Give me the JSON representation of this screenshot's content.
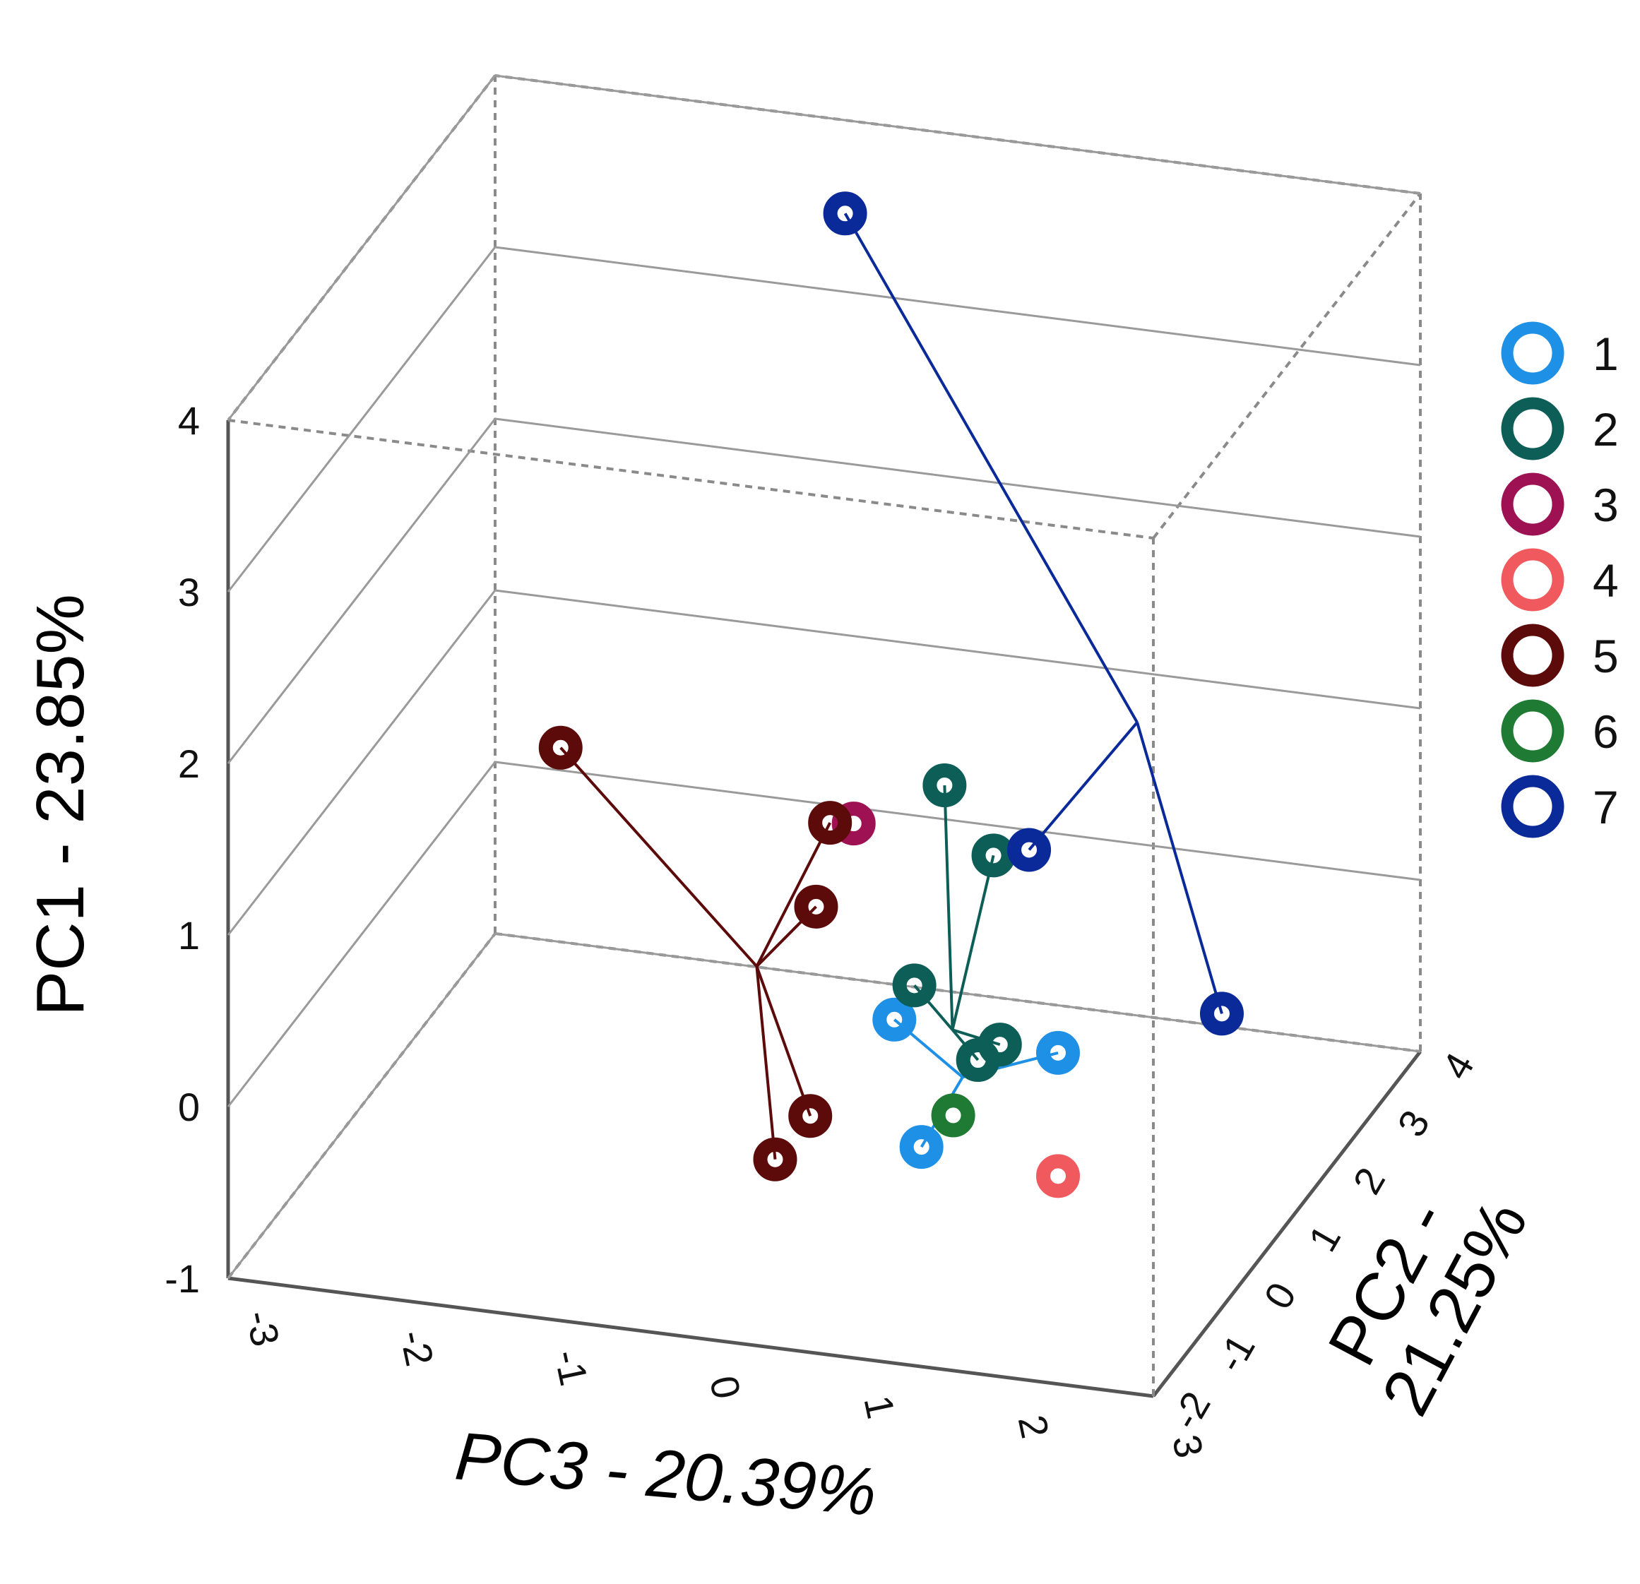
{
  "chart_data": {
    "type": "scatter",
    "projection": "3d",
    "title": "",
    "xlabel": "PC3 - 20.39%",
    "ylabel": "PC2 -\n21.25%",
    "zlabel": "PC1 - 23.85%",
    "xlim": [
      -3,
      3
    ],
    "ylim": [
      -2,
      4
    ],
    "zlim": [
      -1,
      4
    ],
    "x_ticks": [
      "-3",
      "-2",
      "-1",
      "0",
      "1",
      "2",
      "3"
    ],
    "y_ticks": [
      "-2",
      "-1",
      "0",
      "1",
      "2",
      "3",
      "4"
    ],
    "z_ticks": [
      "-1",
      "0",
      "1",
      "2",
      "3",
      "4"
    ],
    "grid": true,
    "legend_position": "right",
    "series": [
      {
        "name": "1",
        "color": "#1e90e6",
        "marker": "ring",
        "points": [
          [
            0.55,
            0.67,
            0.02
          ],
          [
            1.77,
            0.12,
            0.15
          ],
          [
            1.3,
            -1.32,
            0.03
          ]
        ],
        "centroid": [
          1.2,
          -0.05,
          0.0
        ]
      },
      {
        "name": "2",
        "color": "#0d5e57",
        "marker": "ring",
        "points": [
          [
            0.8,
            2.03,
            0.55
          ],
          [
            1.47,
            -1.39,
            2.18
          ],
          [
            0.7,
            0.6,
            0.26
          ],
          [
            1.35,
            0.27,
            0.1
          ],
          [
            1.15,
            0.47,
            -0.08
          ]
        ],
        "centroid": [
          1.12,
          0.0,
          0.25
        ]
      },
      {
        "name": "3",
        "color": "#9e1254",
        "marker": "ring",
        "points": [
          [
            -0.21,
            2.39,
            0.5
          ]
        ]
      },
      {
        "name": "4",
        "color": "#f05a5e",
        "marker": "ring",
        "points": [
          [
            2.2,
            -1.37,
            -0.02
          ]
        ]
      },
      {
        "name": "5",
        "color": "#5c0a0a",
        "marker": "ring",
        "points": [
          [
            -2.2,
            2.7,
            0.61
          ],
          [
            0.0,
            1.13,
            0.95
          ],
          [
            -0.35,
            2.03,
            0.12
          ],
          [
            0.4,
            -0.7,
            -0.1
          ],
          [
            0.25,
            -0.97,
            -0.28
          ]
        ],
        "centroid": [
          -0.38,
          0.8,
          0.18
        ]
      },
      {
        "name": "6",
        "color": "#1f7a33",
        "marker": "ring",
        "points": [
          [
            1.5,
            -1.3,
            0.23
          ]
        ]
      },
      {
        "name": "7",
        "color": "#0a2a9a",
        "marker": "ring",
        "points": [
          [
            -0.28,
            2.44,
            4.03
          ],
          [
            2.44,
            1.48,
            0.0
          ],
          [
            1.04,
            2.0,
            0.62
          ]
        ],
        "centroid": [
          1.66,
          2.28,
          1.34
        ]
      }
    ]
  }
}
